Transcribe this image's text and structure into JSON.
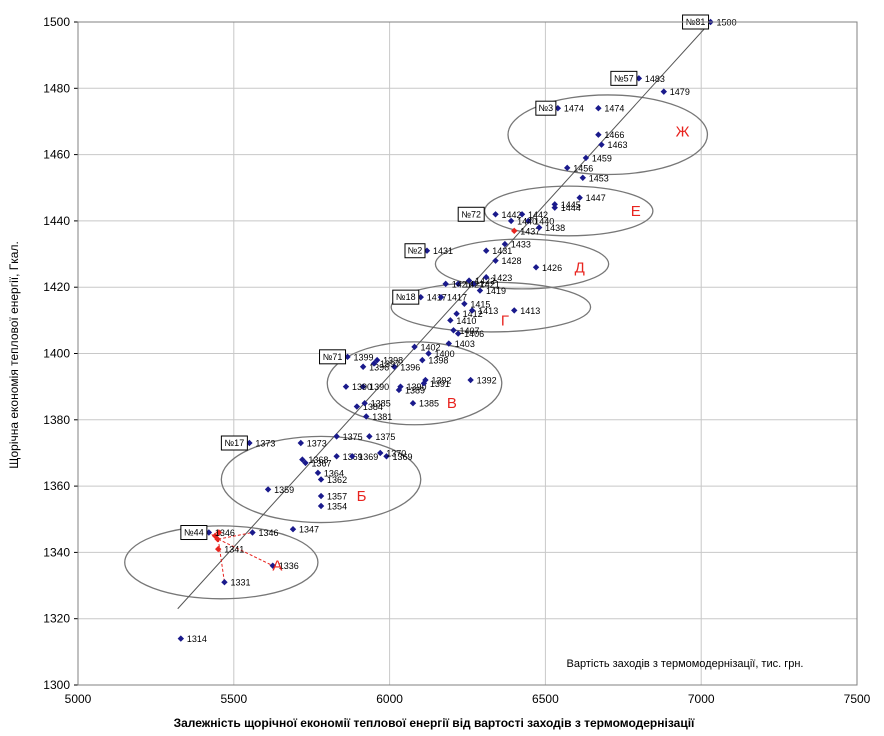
{
  "chart_data": {
    "type": "scatter",
    "title": "Залежність щорічної економії теплової енергії від вартості заходів з термомодернізації",
    "xlabel": "Вартість заходів з термомодернізації, тис. грн.",
    "ylabel": "Щорічна економія теплової енергії, Гкал.",
    "xlim": [
      5000,
      7500
    ],
    "ylim": [
      1300,
      1500
    ],
    "x_ticks": [
      "5000",
      "5500",
      "6000",
      "6500",
      "7000",
      "7500"
    ],
    "y_ticks": [
      "1300",
      "1320",
      "1340",
      "1360",
      "1380",
      "1400",
      "1420",
      "1440",
      "1460",
      "1480",
      "1500"
    ],
    "grid": true,
    "colors": {
      "point": "#1a1a8c",
      "highlight": "#e8241f",
      "trend": "#555555",
      "ellipse": "#777777",
      "group_label": "#e8241f"
    },
    "trendline": {
      "x": [
        5320,
        7030
      ],
      "y": [
        1323,
        1500
      ]
    },
    "points": [
      {
        "x": 5330,
        "y": 1314,
        "label": "1314"
      },
      {
        "x": 5470,
        "y": 1331,
        "label": "1331"
      },
      {
        "x": 5625,
        "y": 1336,
        "label": "1336"
      },
      {
        "x": 5450,
        "y": 1341,
        "label": "1341",
        "highlight": true
      },
      {
        "x": 5448,
        "y": 1344,
        "label": "",
        "highlight": true
      },
      {
        "x": 5452,
        "y": 1346,
        "label": "",
        "highlight": true
      },
      {
        "x": 5440,
        "y": 1345,
        "label": "",
        "highlight": true
      },
      {
        "x": 5560,
        "y": 1346,
        "label": "1346"
      },
      {
        "x": 5420,
        "y": 1346,
        "label": "1346"
      },
      {
        "x": 5690,
        "y": 1347,
        "label": "1347"
      },
      {
        "x": 5780,
        "y": 1354,
        "label": "1354"
      },
      {
        "x": 5780,
        "y": 1357,
        "label": "1357"
      },
      {
        "x": 5610,
        "y": 1359,
        "label": "1359"
      },
      {
        "x": 5780,
        "y": 1362,
        "label": "1362"
      },
      {
        "x": 5770,
        "y": 1364,
        "label": "1364"
      },
      {
        "x": 5730,
        "y": 1367,
        "label": "1367"
      },
      {
        "x": 5720,
        "y": 1368,
        "label": "1368"
      },
      {
        "x": 5830,
        "y": 1369,
        "label": "1369"
      },
      {
        "x": 5990,
        "y": 1369,
        "label": "1369"
      },
      {
        "x": 5880,
        "y": 1369,
        "label": "1369"
      },
      {
        "x": 5970,
        "y": 1370,
        "label": "1370"
      },
      {
        "x": 5715,
        "y": 1373,
        "label": "1373"
      },
      {
        "x": 5550,
        "y": 1373,
        "label": "1373"
      },
      {
        "x": 5830,
        "y": 1375,
        "label": "1375"
      },
      {
        "x": 5935,
        "y": 1375,
        "label": "1375"
      },
      {
        "x": 5925,
        "y": 1381,
        "label": "1381"
      },
      {
        "x": 5895,
        "y": 1384,
        "label": "1384"
      },
      {
        "x": 5920,
        "y": 1385,
        "label": "1385"
      },
      {
        "x": 6075,
        "y": 1385,
        "label": "1385"
      },
      {
        "x": 6030,
        "y": 1389,
        "label": "1389"
      },
      {
        "x": 5915,
        "y": 1390,
        "label": "1390"
      },
      {
        "x": 6035,
        "y": 1390,
        "label": "1390"
      },
      {
        "x": 5860,
        "y": 1390,
        "label": "1390"
      },
      {
        "x": 6110,
        "y": 1391,
        "label": "1391"
      },
      {
        "x": 6260,
        "y": 1392,
        "label": "1392"
      },
      {
        "x": 6115,
        "y": 1392,
        "label": "1392"
      },
      {
        "x": 5915,
        "y": 1396,
        "label": "1396"
      },
      {
        "x": 6015,
        "y": 1396,
        "label": "1396"
      },
      {
        "x": 6105,
        "y": 1398,
        "label": "1398"
      },
      {
        "x": 5960,
        "y": 1398,
        "label": "1398"
      },
      {
        "x": 5865,
        "y": 1399,
        "label": "1399"
      },
      {
        "x": 6125,
        "y": 1400,
        "label": "1400"
      },
      {
        "x": 5950,
        "y": 1397,
        "label": "1397"
      },
      {
        "x": 6080,
        "y": 1402,
        "label": "1402"
      },
      {
        "x": 6190,
        "y": 1403,
        "label": "1403"
      },
      {
        "x": 6220,
        "y": 1406,
        "label": "1406"
      },
      {
        "x": 6205,
        "y": 1407,
        "label": "1407"
      },
      {
        "x": 6195,
        "y": 1410,
        "label": "1410"
      },
      {
        "x": 6215,
        "y": 1412,
        "label": "1412"
      },
      {
        "x": 6265,
        "y": 1413,
        "label": "1413"
      },
      {
        "x": 6400,
        "y": 1413,
        "label": "1413"
      },
      {
        "x": 6240,
        "y": 1415,
        "label": "1415"
      },
      {
        "x": 6100,
        "y": 1417,
        "label": "1417"
      },
      {
        "x": 6165,
        "y": 1417,
        "label": "1417"
      },
      {
        "x": 6290,
        "y": 1419,
        "label": "1419"
      },
      {
        "x": 6270,
        "y": 1421,
        "label": "1421"
      },
      {
        "x": 6220,
        "y": 1421,
        "label": "1421"
      },
      {
        "x": 6180,
        "y": 1421,
        "label": "1421"
      },
      {
        "x": 6255,
        "y": 1422,
        "label": "1422"
      },
      {
        "x": 6310,
        "y": 1423,
        "label": "1423"
      },
      {
        "x": 6470,
        "y": 1426,
        "label": "1426"
      },
      {
        "x": 6340,
        "y": 1428,
        "label": "1428"
      },
      {
        "x": 6310,
        "y": 1431,
        "label": "1431"
      },
      {
        "x": 6120,
        "y": 1431,
        "label": "1431"
      },
      {
        "x": 6370,
        "y": 1433,
        "label": "1433"
      },
      {
        "x": 6400,
        "y": 1437,
        "label": "1437",
        "highlight": true
      },
      {
        "x": 6480,
        "y": 1438,
        "label": "1438"
      },
      {
        "x": 6445,
        "y": 1440,
        "label": "1440"
      },
      {
        "x": 6390,
        "y": 1440,
        "label": "1440"
      },
      {
        "x": 6340,
        "y": 1442,
        "label": "1442"
      },
      {
        "x": 6425,
        "y": 1442,
        "label": "1442"
      },
      {
        "x": 6530,
        "y": 1444,
        "label": "1444"
      },
      {
        "x": 6530,
        "y": 1445,
        "label": "1445"
      },
      {
        "x": 6610,
        "y": 1447,
        "label": "1447"
      },
      {
        "x": 6620,
        "y": 1453,
        "label": "1453"
      },
      {
        "x": 6570,
        "y": 1456,
        "label": "1456"
      },
      {
        "x": 6630,
        "y": 1459,
        "label": "1459"
      },
      {
        "x": 6680,
        "y": 1463,
        "label": "1463"
      },
      {
        "x": 6670,
        "y": 1466,
        "label": "1466"
      },
      {
        "x": 6540,
        "y": 1474,
        "label": "1474"
      },
      {
        "x": 6670,
        "y": 1474,
        "label": "1474"
      },
      {
        "x": 6880,
        "y": 1479,
        "label": "1479"
      },
      {
        "x": 6800,
        "y": 1483,
        "label": "1483"
      },
      {
        "x": 7030,
        "y": 1500,
        "label": "1500"
      }
    ],
    "tags": [
      {
        "text": "№81",
        "x": 7030,
        "y": 1500
      },
      {
        "text": "№57",
        "x": 6800,
        "y": 1483
      },
      {
        "text": "№3",
        "x": 6540,
        "y": 1474
      },
      {
        "text": "№72",
        "x": 6310,
        "y": 1442
      },
      {
        "text": "№2",
        "x": 6120,
        "y": 1431
      },
      {
        "text": "№18",
        "x": 6100,
        "y": 1417
      },
      {
        "text": "№71",
        "x": 5865,
        "y": 1399
      },
      {
        "text": "№17",
        "x": 5550,
        "y": 1373
      },
      {
        "text": "№44",
        "x": 5420,
        "y": 1346
      }
    ],
    "groups": [
      {
        "label": "А",
        "cx": 5460,
        "cy": 1337,
        "rx": 310,
        "ry": 11
      },
      {
        "label": "Б",
        "cx": 5780,
        "cy": 1362,
        "rx": 320,
        "ry": 13
      },
      {
        "label": "В",
        "cx": 6080,
        "cy": 1391,
        "rx": 280,
        "ry": 12.5
      },
      {
        "label": "Г",
        "cx": 6325,
        "cy": 1414,
        "rx": 320,
        "ry": 7.5
      },
      {
        "label": "Д",
        "cx": 6425,
        "cy": 1427,
        "rx": 278,
        "ry": 7.5
      },
      {
        "label": "Е",
        "cx": 6575,
        "cy": 1443,
        "rx": 270,
        "ry": 7.5
      },
      {
        "label": "Ж",
        "cx": 6700,
        "cy": 1466,
        "rx": 320,
        "ry": 12
      }
    ],
    "group_label_pos": [
      {
        "x": 5640,
        "y": 1336
      },
      {
        "x": 5910,
        "y": 1357
      },
      {
        "x": 6200,
        "y": 1385
      },
      {
        "x": 6370,
        "y": 1410
      },
      {
        "x": 6610,
        "y": 1426
      },
      {
        "x": 6790,
        "y": 1443
      },
      {
        "x": 6940,
        "y": 1467
      }
    ]
  }
}
